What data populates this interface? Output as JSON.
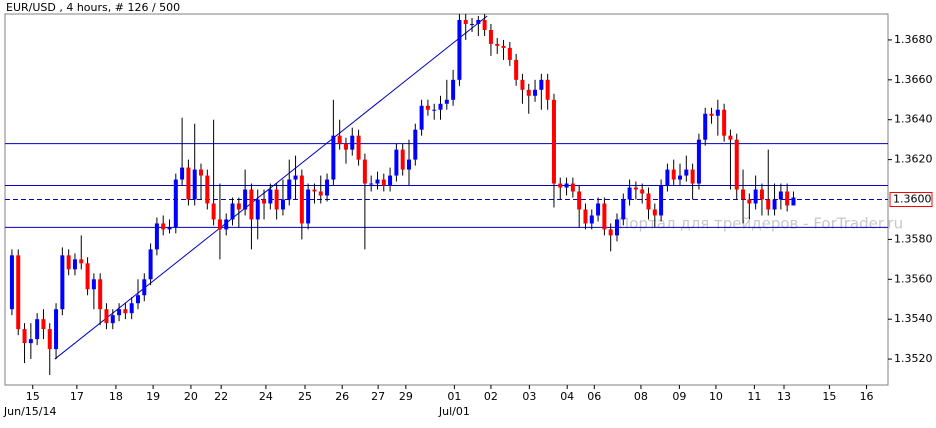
{
  "chart_data": {
    "type": "candlestick",
    "title": "EUR/USD , 4 hours, # 126 / 500",
    "watermark": "Портал для трейдеров - ForTrader.ru",
    "up_color": "#0000ff",
    "down_color": "#ff0000",
    "line_color": "#0000c0",
    "xlim": [
      -1.1,
      139.0
    ],
    "ylim": [
      1.3507,
      1.3693
    ],
    "yticks": [
      {
        "value": 1.352,
        "label": "1.3520"
      },
      {
        "value": 1.354,
        "label": "1.3540"
      },
      {
        "value": 1.356,
        "label": "1.3560"
      },
      {
        "value": 1.358,
        "label": "1.3580"
      },
      {
        "value": 1.362,
        "label": "1.3620"
      },
      {
        "value": 1.364,
        "label": "1.3640"
      },
      {
        "value": 1.366,
        "label": "1.3660"
      },
      {
        "value": 1.368,
        "label": "1.3680"
      }
    ],
    "xticks": [
      {
        "value": 3.3,
        "label": "15"
      },
      {
        "value": 10.3,
        "label": "17"
      },
      {
        "value": 16.5,
        "label": "18"
      },
      {
        "value": 22.4,
        "label": "19"
      },
      {
        "value": 28.4,
        "label": "20"
      },
      {
        "value": 33.2,
        "label": "22"
      },
      {
        "value": 40.3,
        "label": "24"
      },
      {
        "value": 46.5,
        "label": "25"
      },
      {
        "value": 52.4,
        "label": "26"
      },
      {
        "value": 58.1,
        "label": "27"
      },
      {
        "value": 62.5,
        "label": "29"
      },
      {
        "value": 70.2,
        "label": "01"
      },
      {
        "value": 76.0,
        "label": "02"
      },
      {
        "value": 82.1,
        "label": "03"
      },
      {
        "value": 88.1,
        "label": "04"
      },
      {
        "value": 92.4,
        "label": "06"
      },
      {
        "value": 99.8,
        "label": "08"
      },
      {
        "value": 105.9,
        "label": "09"
      },
      {
        "value": 111.7,
        "label": "10"
      },
      {
        "value": 117.8,
        "label": "11"
      },
      {
        "value": 122.5,
        "label": "13"
      },
      {
        "value": 129.7,
        "label": "15"
      },
      {
        "value": 135.6,
        "label": "16"
      }
    ],
    "date_labels": [
      {
        "value": 2.9,
        "label": "Jun/15/14"
      },
      {
        "value": 70.2,
        "label": "Jul/01"
      }
    ],
    "hlines": [
      1.3628,
      1.3607,
      1.3586
    ],
    "price_line": {
      "value": 1.36,
      "label": "1.3600"
    },
    "trendline": {
      "x": [
        6.8,
        75.4
      ],
      "y": [
        1.352,
        1.3692
      ]
    },
    "candles": [
      [
        1.3545,
        1.3575,
        1.3542,
        1.3572
      ],
      [
        1.3572,
        1.3575,
        1.3532,
        1.3535
      ],
      [
        1.3535,
        1.3538,
        1.3518,
        1.3528
      ],
      [
        1.3528,
        1.3538,
        1.352,
        1.353
      ],
      [
        1.353,
        1.3543,
        1.3527,
        1.354
      ],
      [
        1.354,
        1.3545,
        1.353,
        1.3535
      ],
      [
        1.3535,
        1.3538,
        1.3512,
        1.3525
      ],
      [
        1.3525,
        1.3548,
        1.352,
        1.3545
      ],
      [
        1.3545,
        1.3576,
        1.3542,
        1.3572
      ],
      [
        1.3572,
        1.3575,
        1.3562,
        1.3565
      ],
      [
        1.3565,
        1.3573,
        1.3562,
        1.357
      ],
      [
        1.357,
        1.3582,
        1.3565,
        1.3568
      ],
      [
        1.3568,
        1.3571,
        1.3552,
        1.3555
      ],
      [
        1.3555,
        1.3563,
        1.3545,
        1.356
      ],
      [
        1.356,
        1.3563,
        1.3537,
        1.3545
      ],
      [
        1.3545,
        1.3548,
        1.3535,
        1.3538
      ],
      [
        1.3538,
        1.3545,
        1.3535,
        1.3542
      ],
      [
        1.3542,
        1.3548,
        1.3539,
        1.3545
      ],
      [
        1.3545,
        1.3548,
        1.354,
        1.3543
      ],
      [
        1.3543,
        1.3551,
        1.354,
        1.3548
      ],
      [
        1.3548,
        1.356,
        1.3545,
        1.3552
      ],
      [
        1.3552,
        1.3563,
        1.3549,
        1.356
      ],
      [
        1.356,
        1.3578,
        1.3557,
        1.3575
      ],
      [
        1.3575,
        1.3591,
        1.3572,
        1.3588
      ],
      [
        1.3588,
        1.3592,
        1.3582,
        1.3585
      ],
      [
        1.3585,
        1.359,
        1.3583,
        1.3586
      ],
      [
        1.3586,
        1.3613,
        1.3583,
        1.361
      ],
      [
        1.361,
        1.3641,
        1.3607,
        1.3616
      ],
      [
        1.3616,
        1.362,
        1.3597,
        1.36
      ],
      [
        1.36,
        1.3638,
        1.3597,
        1.3615
      ],
      [
        1.3615,
        1.3618,
        1.36,
        1.3612
      ],
      [
        1.3612,
        1.3615,
        1.3595,
        1.3598
      ],
      [
        1.3598,
        1.364,
        1.3587,
        1.359
      ],
      [
        1.359,
        1.3608,
        1.357,
        1.3585
      ],
      [
        1.3585,
        1.3593,
        1.3582,
        1.359
      ],
      [
        1.359,
        1.3601,
        1.3587,
        1.3598
      ],
      [
        1.3598,
        1.3601,
        1.3586,
        1.3595
      ],
      [
        1.3595,
        1.3615,
        1.3592,
        1.3605
      ],
      [
        1.3605,
        1.3608,
        1.3575,
        1.359
      ],
      [
        1.359,
        1.3605,
        1.358,
        1.36
      ],
      [
        1.36,
        1.3605,
        1.359,
        1.3598
      ],
      [
        1.3598,
        1.3608,
        1.3595,
        1.3605
      ],
      [
        1.3605,
        1.3608,
        1.359,
        1.3595
      ],
      [
        1.3595,
        1.361,
        1.3592,
        1.36
      ],
      [
        1.36,
        1.362,
        1.3597,
        1.361
      ],
      [
        1.361,
        1.3622,
        1.36,
        1.3612
      ],
      [
        1.3612,
        1.3615,
        1.358,
        1.3588
      ],
      [
        1.3588,
        1.3608,
        1.3585,
        1.3605
      ],
      [
        1.3605,
        1.3608,
        1.3598,
        1.3604
      ],
      [
        1.3604,
        1.3612,
        1.3598,
        1.3602
      ],
      [
        1.3602,
        1.3613,
        1.3599,
        1.361
      ],
      [
        1.361,
        1.365,
        1.3607,
        1.3632
      ],
      [
        1.3632,
        1.364,
        1.3625,
        1.3628
      ],
      [
        1.3628,
        1.3631,
        1.3618,
        1.3625
      ],
      [
        1.3625,
        1.3636,
        1.3622,
        1.3632
      ],
      [
        1.3632,
        1.3635,
        1.3617,
        1.362
      ],
      [
        1.362,
        1.3623,
        1.3575,
        1.3608
      ],
      [
        1.3608,
        1.3612,
        1.3604,
        1.3608
      ],
      [
        1.3608,
        1.3614,
        1.3605,
        1.361
      ],
      [
        1.361,
        1.3613,
        1.3604,
        1.3607
      ],
      [
        1.3607,
        1.3616,
        1.3604,
        1.3612
      ],
      [
        1.3612,
        1.3628,
        1.3609,
        1.3625
      ],
      [
        1.3625,
        1.3628,
        1.3612,
        1.3615
      ],
      [
        1.3615,
        1.363,
        1.3607,
        1.362
      ],
      [
        1.362,
        1.3638,
        1.3617,
        1.3635
      ],
      [
        1.3635,
        1.365,
        1.3632,
        1.3647
      ],
      [
        1.3647,
        1.365,
        1.3642,
        1.3645
      ],
      [
        1.3645,
        1.3648,
        1.364,
        1.3645
      ],
      [
        1.3645,
        1.3652,
        1.364,
        1.3648
      ],
      [
        1.3648,
        1.366,
        1.3645,
        1.365
      ],
      [
        1.365,
        1.3665,
        1.3647,
        1.366
      ],
      [
        1.366,
        1.3693,
        1.3657,
        1.369
      ],
      [
        1.369,
        1.3693,
        1.368,
        1.3688
      ],
      [
        1.3688,
        1.3691,
        1.3684,
        1.3688
      ],
      [
        1.3688,
        1.3692,
        1.3682,
        1.369
      ],
      [
        1.369,
        1.3693,
        1.3682,
        1.3685
      ],
      [
        1.3685,
        1.3688,
        1.3672,
        1.3678
      ],
      [
        1.3678,
        1.3681,
        1.3673,
        1.3677
      ],
      [
        1.3677,
        1.368,
        1.367,
        1.3676
      ],
      [
        1.3676,
        1.3679,
        1.3667,
        1.367
      ],
      [
        1.367,
        1.3673,
        1.3657,
        1.366
      ],
      [
        1.366,
        1.3663,
        1.3648,
        1.3655
      ],
      [
        1.3655,
        1.3658,
        1.3643,
        1.3652
      ],
      [
        1.3652,
        1.366,
        1.3649,
        1.3655
      ],
      [
        1.3655,
        1.3663,
        1.3645,
        1.366
      ],
      [
        1.366,
        1.3663,
        1.3645,
        1.365
      ],
      [
        1.365,
        1.3653,
        1.3596,
        1.3608
      ],
      [
        1.3608,
        1.3611,
        1.36,
        1.3606
      ],
      [
        1.3606,
        1.3611,
        1.3602,
        1.3608
      ],
      [
        1.3608,
        1.3611,
        1.3601,
        1.3604
      ],
      [
        1.3604,
        1.3607,
        1.3586,
        1.3595
      ],
      [
        1.3595,
        1.3598,
        1.3585,
        1.3588
      ],
      [
        1.3588,
        1.3595,
        1.3585,
        1.3592
      ],
      [
        1.3592,
        1.3601,
        1.3589,
        1.3598
      ],
      [
        1.3598,
        1.3601,
        1.3582,
        1.3585
      ],
      [
        1.3585,
        1.3588,
        1.3574,
        1.3582
      ],
      [
        1.3582,
        1.3593,
        1.3579,
        1.359
      ],
      [
        1.359,
        1.3603,
        1.3587,
        1.36
      ],
      [
        1.36,
        1.361,
        1.3597,
        1.3606
      ],
      [
        1.3606,
        1.3609,
        1.36,
        1.3605
      ],
      [
        1.3605,
        1.3608,
        1.3598,
        1.3603
      ],
      [
        1.3603,
        1.3606,
        1.359,
        1.3595
      ],
      [
        1.3595,
        1.3598,
        1.3586,
        1.3592
      ],
      [
        1.3592,
        1.361,
        1.3589,
        1.3607
      ],
      [
        1.3607,
        1.3618,
        1.3604,
        1.3615
      ],
      [
        1.3615,
        1.362,
        1.3607,
        1.361
      ],
      [
        1.361,
        1.3618,
        1.3607,
        1.3612
      ],
      [
        1.3612,
        1.3622,
        1.3609,
        1.3615
      ],
      [
        1.3615,
        1.3618,
        1.36,
        1.3608
      ],
      [
        1.3608,
        1.3633,
        1.3605,
        1.363
      ],
      [
        1.363,
        1.3646,
        1.3627,
        1.3643
      ],
      [
        1.3643,
        1.3646,
        1.3638,
        1.3642
      ],
      [
        1.3642,
        1.365,
        1.3632,
        1.3645
      ],
      [
        1.3645,
        1.3648,
        1.3629,
        1.3632
      ],
      [
        1.3632,
        1.3635,
        1.3605,
        1.363
      ],
      [
        1.363,
        1.3633,
        1.36,
        1.3605
      ],
      [
        1.3605,
        1.3615,
        1.3588,
        1.36
      ],
      [
        1.36,
        1.3603,
        1.359,
        1.3598
      ],
      [
        1.3598,
        1.3612,
        1.3595,
        1.3605
      ],
      [
        1.3605,
        1.3608,
        1.3592,
        1.36
      ],
      [
        1.36,
        1.3625,
        1.3592,
        1.3595
      ],
      [
        1.3595,
        1.3608,
        1.3592,
        1.36
      ],
      [
        1.36,
        1.3608,
        1.3595,
        1.3604
      ],
      [
        1.3604,
        1.3608,
        1.3594,
        1.3597
      ],
      [
        1.3597,
        1.3604,
        1.3598,
        1.3601
      ]
    ]
  }
}
